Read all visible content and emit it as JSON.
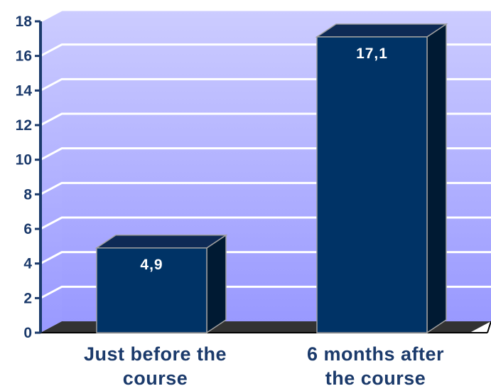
{
  "chart_data": {
    "type": "bar",
    "categories": [
      [
        "Just before the",
        "course"
      ],
      [
        "6 months after",
        "the course"
      ]
    ],
    "values": [
      4.9,
      17.1
    ],
    "data_labels": [
      "4,9",
      "17,1"
    ],
    "ylim": [
      0,
      18
    ],
    "yticks": [
      "0",
      "2",
      "4",
      "6",
      "8",
      "10",
      "12",
      "14",
      "16",
      "18"
    ],
    "grid": true,
    "colors": {
      "bar_front": "#003366",
      "bar_top": "#0e2a55",
      "bar_side": "#001a33",
      "wall_top": "#ccccff",
      "wall_bottom": "#9999ff",
      "floor": "#333333",
      "axis": "#1b3a6b"
    }
  }
}
